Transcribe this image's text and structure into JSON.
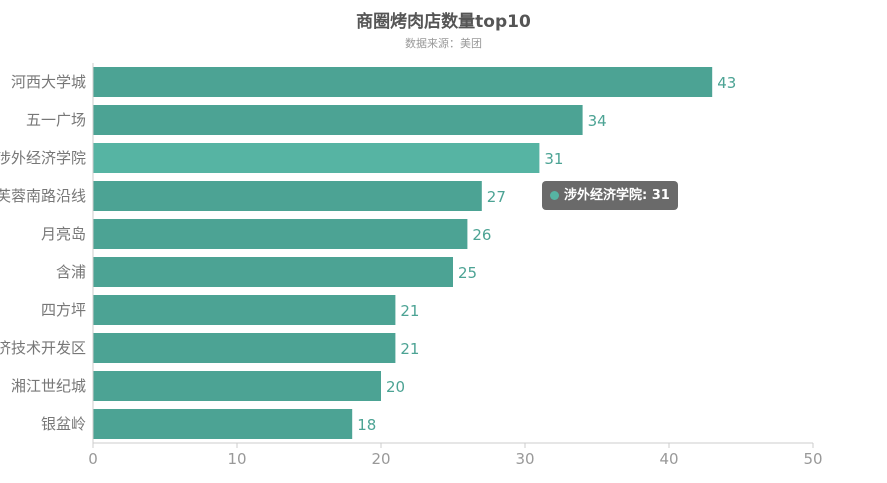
{
  "chart_data": {
    "type": "bar",
    "orientation": "horizontal",
    "title": "商圈烤肉店数量top10",
    "subtitle": "数据来源：美团",
    "categories": [
      "河西大学城",
      "五一广场",
      "涉外经济学院",
      "芙蓉南路沿线",
      "月亮岛",
      "含浦",
      "四方坪",
      "经济技术开发区",
      "湘江世纪城",
      "银盆岭"
    ],
    "values": [
      43,
      34,
      31,
      27,
      26,
      25,
      21,
      21,
      20,
      18
    ],
    "xlim": [
      0,
      50
    ],
    "xticks": [
      0,
      10,
      20,
      30,
      40,
      50
    ],
    "grid": false,
    "data_labels": true,
    "colors": {
      "bar": "#4ca394",
      "highlight": "#56b4a3",
      "label": "#4ca394",
      "axis_text": "#999999"
    },
    "highlighted_index": 2,
    "tooltip": {
      "label": "涉外经济学院: 31"
    }
  }
}
